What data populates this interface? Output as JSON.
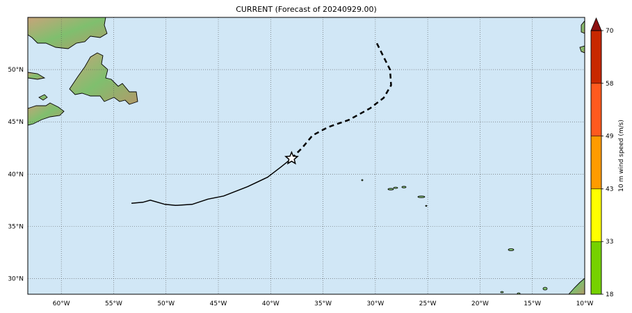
{
  "title": "CURRENT (Forecast of 20240929.00)",
  "map": {
    "lon_range": [
      -63.2,
      -10
    ],
    "lat_range": [
      28.5,
      55
    ],
    "lon_ticks": [
      {
        "value": -60,
        "label": "60°W"
      },
      {
        "value": -55,
        "label": "55°W"
      },
      {
        "value": -50,
        "label": "50°W"
      },
      {
        "value": -45,
        "label": "45°W"
      },
      {
        "value": -40,
        "label": "40°W"
      },
      {
        "value": -35,
        "label": "35°W"
      },
      {
        "value": -30,
        "label": "30°W"
      },
      {
        "value": -25,
        "label": "25°W"
      },
      {
        "value": -20,
        "label": "20°W"
      },
      {
        "value": -15,
        "label": "15°W"
      },
      {
        "value": -10,
        "label": "10°W"
      }
    ],
    "lat_ticks": [
      {
        "value": 30,
        "label": "30°N"
      },
      {
        "value": 35,
        "label": "35°N"
      },
      {
        "value": 40,
        "label": "40°N"
      },
      {
        "value": 45,
        "label": "45°N"
      },
      {
        "value": 50,
        "label": "50°N"
      }
    ],
    "grid": true,
    "colors": {
      "ocean": "#d1e7f6",
      "land_low": "#7fbf6e",
      "land_high": "#c8a47a",
      "grid": "#555555"
    }
  },
  "track": {
    "past": [
      [
        -53.3,
        37.2
      ],
      [
        -52.2,
        37.3
      ],
      [
        -51.5,
        37.5
      ],
      [
        -50.1,
        37.1
      ],
      [
        -49.1,
        37.0
      ],
      [
        -47.5,
        37.1
      ],
      [
        -46.0,
        37.6
      ],
      [
        -44.5,
        37.9
      ],
      [
        -42.2,
        38.8
      ],
      [
        -40.3,
        39.7
      ],
      [
        -39.0,
        40.7
      ],
      [
        -38.0,
        41.5
      ]
    ],
    "forecast": [
      [
        -38.0,
        41.5
      ],
      [
        -37.0,
        42.5
      ],
      [
        -36.0,
        43.7
      ],
      [
        -34.5,
        44.5
      ],
      [
        -32.5,
        45.2
      ],
      [
        -30.5,
        46.3
      ],
      [
        -29.2,
        47.3
      ],
      [
        -28.5,
        48.5
      ],
      [
        -28.6,
        50.0
      ],
      [
        -29.2,
        51.2
      ],
      [
        -30.0,
        52.8
      ]
    ],
    "current_position": [
      -38.0,
      41.5
    ]
  },
  "colorbar": {
    "label": "10 m wind speed (m/s)",
    "bands": [
      {
        "from": 18,
        "to": 33,
        "color": "#76d100"
      },
      {
        "from": 33,
        "to": 43,
        "color": "#ffff00"
      },
      {
        "from": 43,
        "to": 49,
        "color": "#ff9b00"
      },
      {
        "from": 49,
        "to": 58,
        "color": "#ff5a1e"
      },
      {
        "from": 58,
        "to": 70,
        "color": "#c82800"
      }
    ],
    "extend_color": "#8c1010",
    "ticks": [
      "18",
      "33",
      "43",
      "49",
      "58",
      "70"
    ]
  }
}
